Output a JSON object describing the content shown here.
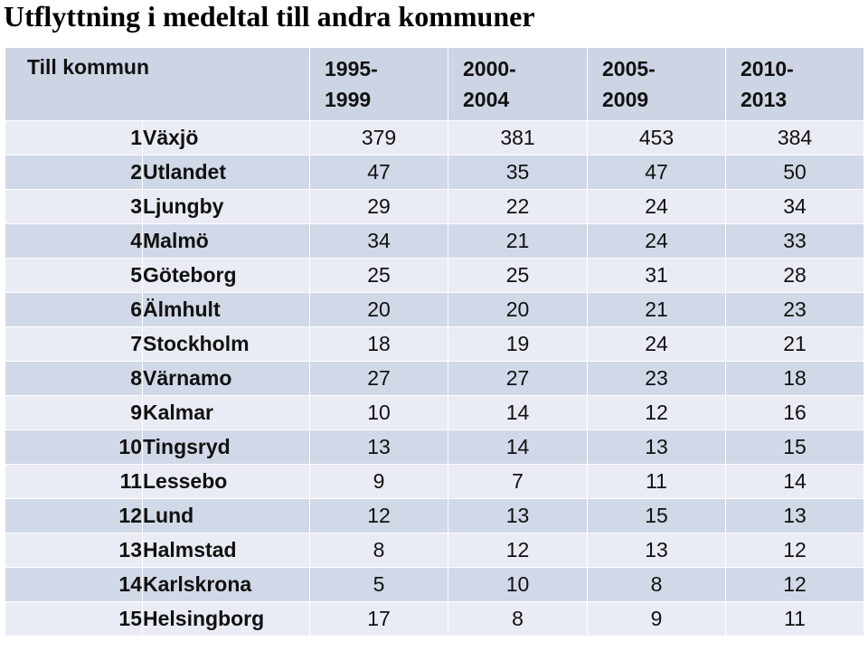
{
  "chart_data": {
    "type": "table",
    "title": "Utflyttning i medeltal till andra kommuner",
    "header": {
      "label": "Till kommun",
      "periods": [
        {
          "line1": "1995-",
          "line2": "1999"
        },
        {
          "line1": "2000-",
          "line2": "2004"
        },
        {
          "line1": "2005-",
          "line2": "2009"
        },
        {
          "line1": "2010-",
          "line2": "2013"
        }
      ]
    },
    "rows": [
      {
        "rank": "1",
        "name": "Växjö",
        "values": [
          379,
          381,
          453,
          384
        ]
      },
      {
        "rank": "2",
        "name": "Utlandet",
        "values": [
          47,
          35,
          47,
          50
        ]
      },
      {
        "rank": "3",
        "name": "Ljungby",
        "values": [
          29,
          22,
          24,
          34
        ]
      },
      {
        "rank": "4",
        "name": "Malmö",
        "values": [
          34,
          21,
          24,
          33
        ]
      },
      {
        "rank": "5",
        "name": "Göteborg",
        "values": [
          25,
          25,
          31,
          28
        ]
      },
      {
        "rank": "6",
        "name": "Älmhult",
        "values": [
          20,
          20,
          21,
          23
        ]
      },
      {
        "rank": "7",
        "name": "Stockholm",
        "values": [
          18,
          19,
          24,
          21
        ]
      },
      {
        "rank": "8",
        "name": "Värnamo",
        "values": [
          27,
          27,
          23,
          18
        ]
      },
      {
        "rank": "9",
        "name": "Kalmar",
        "values": [
          10,
          14,
          12,
          16
        ]
      },
      {
        "rank": "10",
        "name": "Tingsryd",
        "values": [
          13,
          14,
          13,
          15
        ]
      },
      {
        "rank": "11",
        "name": "Lessebo",
        "values": [
          9,
          7,
          11,
          14
        ]
      },
      {
        "rank": "12",
        "name": "Lund",
        "values": [
          12,
          13,
          15,
          13
        ]
      },
      {
        "rank": "13",
        "name": "Halmstad",
        "values": [
          8,
          12,
          13,
          12
        ]
      },
      {
        "rank": "14",
        "name": "Karlskrona",
        "values": [
          5,
          10,
          8,
          12
        ]
      },
      {
        "rank": "15",
        "name": "Helsingborg",
        "values": [
          17,
          8,
          9,
          11
        ]
      }
    ],
    "colors": {
      "header_bg": "#cdd5e4",
      "row_light": "#e9ecf4",
      "row_dark": "#d1d8e7",
      "text": "#111111"
    }
  }
}
